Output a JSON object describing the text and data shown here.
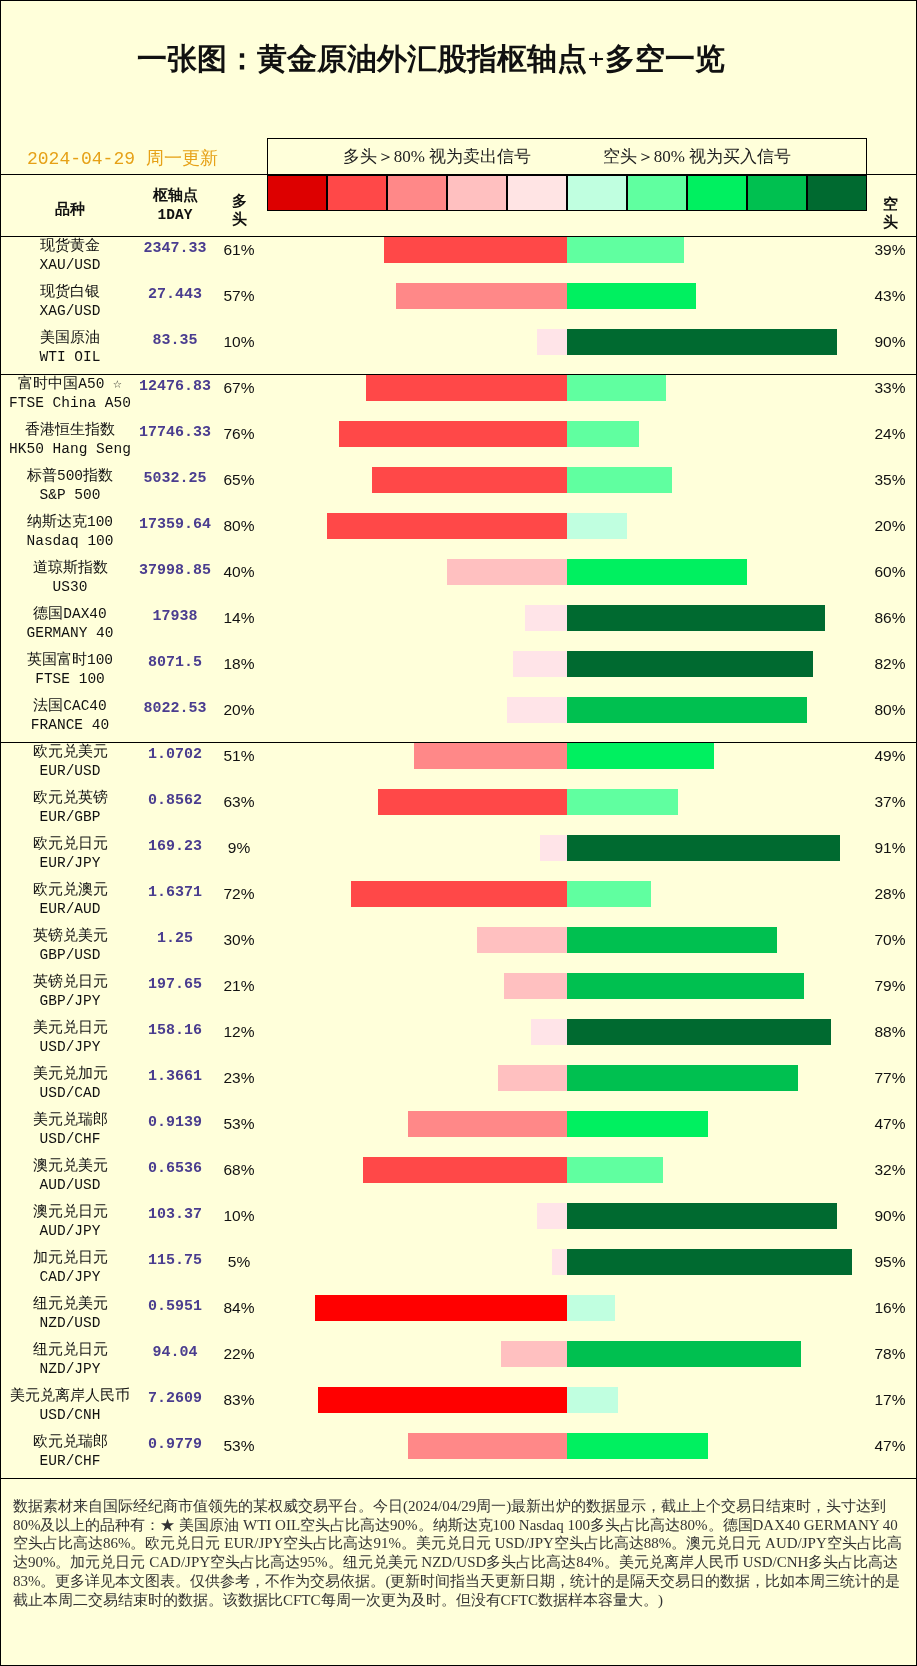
{
  "chart_data": [
    {
      "type": "bar",
      "orientation": "horizontal",
      "title": "一张图：黄金原油外汇股指枢轴点+多空一览",
      "subtitle": "2024-04-29 周一更新",
      "ylabel": "品种",
      "y2label": "枢轴点 1DAY",
      "xlabel": "多头",
      "annotations": [
        "多头＞80% 视为卖出信号"
      ],
      "tick_labels": "y",
      "categories": [
        "现货黄金\nXAU/USD",
        "现货白银\nXAG/USD",
        "美国原油\nWTI OIL"
      ],
      "y2_categories": [
        "2347.33",
        "27.443",
        "83.35"
      ],
      "series": [
        {
          "values": [
            61,
            57,
            10
          ],
          "colors": [
            "#ff4848",
            "#ff8888",
            "#ffe4e8"
          ],
          "value_labels": [
            "61%",
            "57%",
            "10%"
          ]
        }
      ]
    },
    {
      "type": "bar",
      "orientation": "horizontal",
      "xlabel": "空头",
      "annotations": [
        "空头＞80% 视为买入信号"
      ],
      "tick_labels": false,
      "categories": [
        null,
        null,
        null
      ],
      "series": [
        {
          "values": [
            39,
            43,
            90
          ],
          "colors": [
            "#60ffa0",
            "#00f060",
            "#006a30"
          ],
          "value_labels": [
            "39%",
            "43%",
            "90%"
          ]
        }
      ]
    },
    {
      "type": "bar",
      "orientation": "horizontal",
      "tick_labels": "y",
      "categories": [
        "富时中国A50 ☆\nFTSE China A50",
        "香港恒生指数\nHK50 Hang Seng",
        "标普500指数\nS&P 500",
        "纳斯达克100\nNasdaq 100",
        "道琼斯指数\nUS30",
        "德国DAX40\nGERMANY 40",
        "英国富时100\nFTSE 100",
        "法国CAC40\nFRANCE 40"
      ],
      "y2_categories": [
        "12476.83",
        "17746.33",
        "5032.25",
        "17359.64",
        "37998.85",
        "17938",
        "8071.5",
        "8022.53"
      ],
      "series": [
        {
          "values": [
            67,
            76,
            65,
            80,
            40,
            14,
            18,
            20
          ],
          "colors": [
            "#ff4848",
            "#ff4848",
            "#ff4848",
            "#ff4848",
            "#ffc0c0",
            "#ffe4e8",
            "#ffe4e8",
            "#ffe4e8"
          ],
          "value_labels": [
            "67%",
            "76%",
            "65%",
            "80%",
            "40%",
            "14%",
            "18%",
            "20%"
          ]
        }
      ]
    },
    {
      "type": "bar",
      "orientation": "horizontal",
      "tick_labels": false,
      "categories": [
        null,
        null,
        null,
        null,
        null,
        null,
        null,
        null
      ],
      "series": [
        {
          "values": [
            33,
            24,
            35,
            20,
            60,
            86,
            82,
            80
          ],
          "colors": [
            "#60ffa0",
            "#60ffa0",
            "#60ffa0",
            "#c0ffe0",
            "#00f060",
            "#006a30",
            "#006a30",
            "#00c050"
          ],
          "value_labels": [
            "33%",
            "24%",
            "35%",
            "20%",
            "60%",
            "86%",
            "82%",
            "80%"
          ]
        }
      ]
    },
    {
      "type": "bar",
      "orientation": "horizontal",
      "tick_labels": "y",
      "categories": [
        "欧元兑美元\nEUR/USD",
        "欧元兑英镑\nEUR/GBP",
        "欧元兑日元\nEUR/JPY",
        "欧元兑澳元\nEUR/AUD",
        "英镑兑美元\nGBP/USD",
        "英镑兑日元\nGBP/JPY",
        "美元兑日元\nUSD/JPY",
        "美元兑加元\nUSD/CAD",
        "美元兑瑞郎\nUSD/CHF",
        "澳元兑美元\nAUD/USD",
        "澳元兑日元\nAUD/JPY",
        "加元兑日元\nCAD/JPY",
        "纽元兑美元\nNZD/USD",
        "纽元兑日元\nNZD/JPY",
        "美元兑离岸人民币\nUSD/CNH",
        "欧元兑瑞郎\nEUR/CHF"
      ],
      "y2_categories": [
        "1.0702",
        "0.8562",
        "169.23",
        "1.6371",
        "1.25",
        "197.65",
        "158.16",
        "1.3661",
        "0.9139",
        "0.6536",
        "103.37",
        "115.75",
        "0.5951",
        "94.04",
        "7.2609",
        "0.9779"
      ],
      "series": [
        {
          "values": [
            51,
            63,
            9,
            72,
            30,
            21,
            12,
            23,
            53,
            68,
            10,
            5,
            84,
            22,
            83,
            53
          ],
          "colors": [
            "#ff8888",
            "#ff4848",
            "#ffe4e8",
            "#ff4848",
            "#ffc0c0",
            "#ffc0c0",
            "#ffe4e8",
            "#ffc0c0",
            "#ff8888",
            "#ff4848",
            "#ffe4e8",
            "#ffe4e8",
            "#ff0000",
            "#ffc0c0",
            "#ff0000",
            "#ff8888"
          ],
          "value_labels": [
            "51%",
            "63%",
            "9%",
            "72%",
            "30%",
            "21%",
            "12%",
            "23%",
            "53%",
            "68%",
            "10%",
            "5%",
            "84%",
            "22%",
            "83%",
            "53%"
          ]
        }
      ],
      "annotations": [
        "数据素材来自国际经纪商市值领先的某权威交易平台。今日(2024/04/29周一)最新出炉的数据显示，截止上个交易日结束时，头寸达到80%及以上的品种有：★ 美国原油 WTI OIL空头占比高达90%。纳斯达克100 Nasdaq 100多头占比高达80%。德国DAX40 GERMANY 40空头占比高达86%。欧元兑日元 EUR/JPY空头占比高达91%。美元兑日元 USD/JPY空头占比高达88%。澳元兑日元 AUD/JPY空头占比高达90%。加元兑日元 CAD/JPY空头占比高达95%。纽元兑美元 NZD/USD多头占比高达84%。美元兑离岸人民币 USD/CNH多头占比高达83%。更多详见本文图表。仅供参考，不作为交易依据。(更新时间指当天更新日期，统计的是隔天交易日的数据，比如本周三统计的是截止本周二交易结束时的数据。该数据比CFTC每周一次更为及时。但没有CFTC数据样本容量大。)"
      ]
    },
    {
      "type": "bar",
      "orientation": "horizontal",
      "tick_labels": false,
      "categories": [
        null,
        null,
        null,
        null,
        null,
        null,
        null,
        null,
        null,
        null,
        null,
        null,
        null,
        null,
        null,
        null
      ],
      "series": [
        {
          "values": [
            49,
            37,
            91,
            28,
            70,
            79,
            88,
            77,
            47,
            32,
            90,
            95,
            16,
            78,
            17,
            47
          ],
          "colors": [
            "#00f060",
            "#60ffa0",
            "#006a30",
            "#60ffa0",
            "#00c050",
            "#00c050",
            "#006a30",
            "#00c050",
            "#00f060",
            "#60ffa0",
            "#006a30",
            "#006a30",
            "#c0ffe0",
            "#00c050",
            "#c0ffe0",
            "#00f060"
          ],
          "value_labels": [
            "49%",
            "37%",
            "91%",
            "28%",
            "70%",
            "79%",
            "88%",
            "77%",
            "47%",
            "32%",
            "90%",
            "95%",
            "16%",
            "78%",
            "17%",
            "47%"
          ]
        }
      ]
    }
  ]
}
